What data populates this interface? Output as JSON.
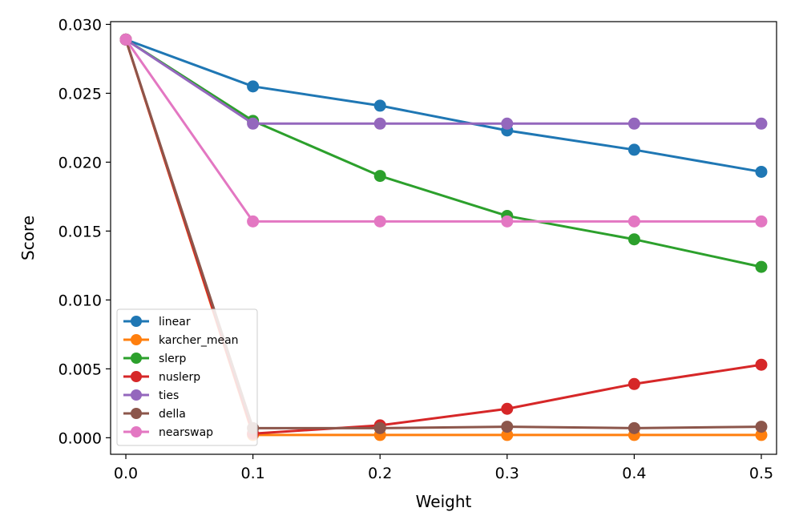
{
  "chart_data": {
    "type": "line",
    "title": "",
    "xlabel": "Weight",
    "ylabel": "Score",
    "x": [
      0.0,
      0.1,
      0.2,
      0.3,
      0.4,
      0.5
    ],
    "xlim": [
      -0.012,
      0.512
    ],
    "ylim": [
      -0.0012,
      0.0302
    ],
    "x_ticks": [
      "0.0",
      "0.1",
      "0.2",
      "0.3",
      "0.4",
      "0.5"
    ],
    "y_ticks": [
      "0.000",
      "0.005",
      "0.010",
      "0.015",
      "0.020",
      "0.025",
      "0.030"
    ],
    "grid": false,
    "legend_position": "lower-left",
    "series": [
      {
        "name": "linear",
        "color": "#1f77b4",
        "values": [
          0.0289,
          0.0255,
          0.0241,
          0.0223,
          0.0209,
          0.0193
        ]
      },
      {
        "name": "karcher_mean",
        "color": "#ff7f0e",
        "values": [
          0.0289,
          0.0002,
          0.0002,
          0.0002,
          0.0002,
          0.0002
        ]
      },
      {
        "name": "slerp",
        "color": "#2ca02c",
        "values": [
          0.0289,
          0.023,
          0.019,
          0.0161,
          0.0144,
          0.0124
        ]
      },
      {
        "name": "nuslerp",
        "color": "#d62728",
        "values": [
          0.0289,
          0.0003,
          0.0009,
          0.0021,
          0.0039,
          0.0053
        ]
      },
      {
        "name": "ties",
        "color": "#9467bd",
        "values": [
          0.0289,
          0.0228,
          0.0228,
          0.0228,
          0.0228,
          0.0228
        ]
      },
      {
        "name": "della",
        "color": "#8c564b",
        "values": [
          0.0289,
          0.0007,
          0.0007,
          0.0008,
          0.0007,
          0.0008
        ]
      },
      {
        "name": "nearswap",
        "color": "#e377c2",
        "values": [
          0.0289,
          0.0157,
          0.0157,
          0.0157,
          0.0157,
          0.0157
        ]
      }
    ]
  }
}
